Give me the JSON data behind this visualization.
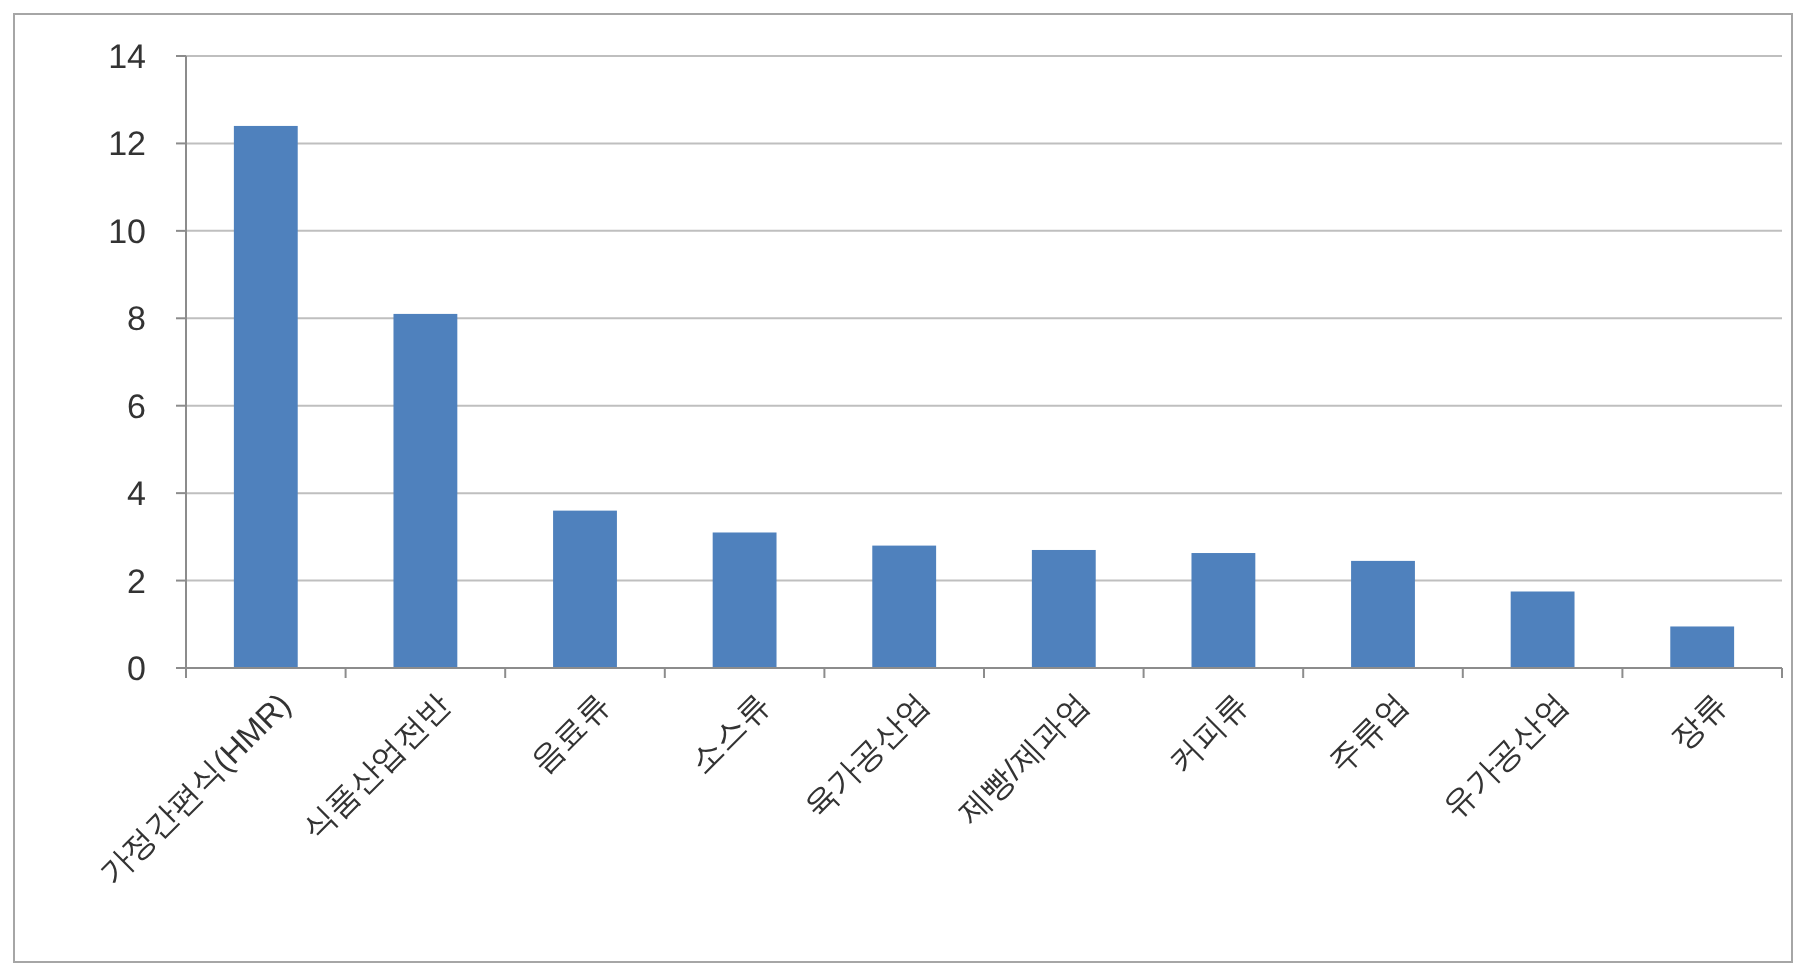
{
  "chart_data": {
    "type": "bar",
    "categories": [
      "가정간편식(HMR)",
      "식품산업전반",
      "음료류",
      "소스류",
      "육가공산업",
      "제빵/제과업",
      "커피류",
      "주류업",
      "유가공산업",
      "장류"
    ],
    "values": [
      12.4,
      8.1,
      3.6,
      3.1,
      2.8,
      2.7,
      2.63,
      2.45,
      1.75,
      0.95
    ],
    "color": "#4f81bd",
    "ylim": [
      0,
      14
    ],
    "yticks": [
      0,
      2,
      4,
      6,
      8,
      10,
      12,
      14
    ],
    "grid": "y"
  }
}
